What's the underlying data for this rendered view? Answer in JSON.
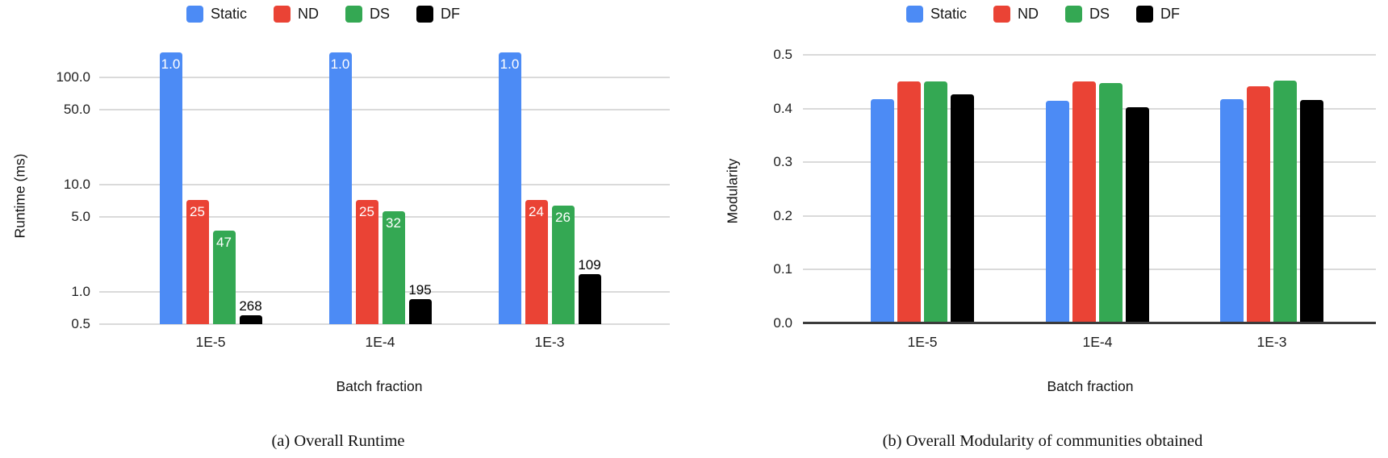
{
  "chart_data": [
    {
      "type": "bar",
      "panel": "a",
      "title": "(a) Overall Runtime",
      "xlabel": "Batch fraction",
      "ylabel": "Runtime (ms)",
      "yscale": "log",
      "ylim": [
        0.5,
        250
      ],
      "yticks": [
        "100.0",
        "50.0",
        "10.0",
        "5.0",
        "1.0",
        "0.5"
      ],
      "grid": "horizontal",
      "legend_position": "top",
      "categories": [
        "1E-5",
        "1E-4",
        "1E-3"
      ],
      "series": [
        {
          "name": "Static",
          "color": "#4c8bf5",
          "values": [
            170,
            170,
            170
          ],
          "bar_labels": [
            "1.0",
            "1.0",
            "1.0"
          ]
        },
        {
          "name": "ND",
          "color": "#ea4335",
          "values": [
            7.2,
            7.2,
            7.2
          ],
          "bar_labels": [
            "25",
            "25",
            "24"
          ]
        },
        {
          "name": "DS",
          "color": "#34a853",
          "values": [
            3.7,
            5.6,
            6.4
          ],
          "bar_labels": [
            "47",
            "32",
            "26"
          ]
        },
        {
          "name": "DF",
          "color": "#000000",
          "values": [
            0.6,
            0.85,
            1.45
          ],
          "bar_labels": [
            "268",
            "195",
            "109"
          ]
        }
      ]
    },
    {
      "type": "bar",
      "panel": "b",
      "title": "(b) Overall Modularity of communities obtained",
      "xlabel": "Batch fraction",
      "ylabel": "Modularity",
      "yscale": "linear",
      "ylim": [
        0.0,
        0.5
      ],
      "yticks": [
        "0.5",
        "0.4",
        "0.3",
        "0.2",
        "0.1",
        "0.0"
      ],
      "grid": "horizontal",
      "legend_position": "top",
      "categories": [
        "1E-5",
        "1E-4",
        "1E-3"
      ],
      "series": [
        {
          "name": "Static",
          "color": "#4c8bf5",
          "values": [
            0.418,
            0.415,
            0.418
          ]
        },
        {
          "name": "ND",
          "color": "#ea4335",
          "values": [
            0.451,
            0.451,
            0.441
          ]
        },
        {
          "name": "DS",
          "color": "#34a853",
          "values": [
            0.451,
            0.448,
            0.452
          ]
        },
        {
          "name": "DF",
          "color": "#000000",
          "values": [
            0.427,
            0.403,
            0.416
          ]
        }
      ]
    }
  ],
  "colors": {
    "grid": "#dadada",
    "axis": "#3b3b3b",
    "text": "#1f1f1f"
  }
}
